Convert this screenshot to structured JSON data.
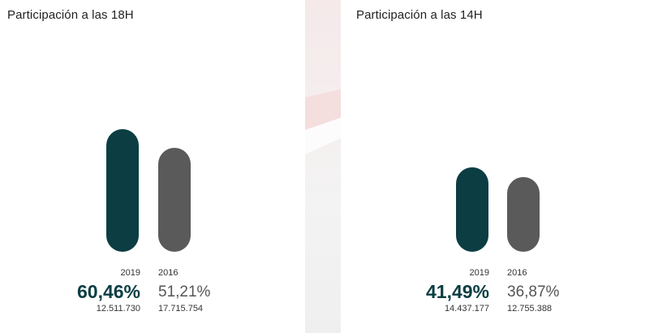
{
  "colors": {
    "primary": "#0b3d43",
    "secondary": "#5a5a5a"
  },
  "chart_data": [
    {
      "type": "bar",
      "title": "Participación a las 18H",
      "categories": [
        "2019",
        "2016"
      ],
      "values": [
        60.46,
        51.21
      ],
      "value_labels": [
        "60,46%",
        "51,21%"
      ],
      "counts": [
        "12.511.730",
        "17.715.754"
      ],
      "ylim": [
        0,
        100
      ]
    },
    {
      "type": "bar",
      "title": "Participación a las 14H",
      "categories": [
        "2019",
        "2016"
      ],
      "values": [
        41.49,
        36.87
      ],
      "value_labels": [
        "41,49%",
        "36,87%"
      ],
      "counts": [
        "14.437.177",
        "12.755.388"
      ],
      "ylim": [
        0,
        100
      ]
    }
  ]
}
